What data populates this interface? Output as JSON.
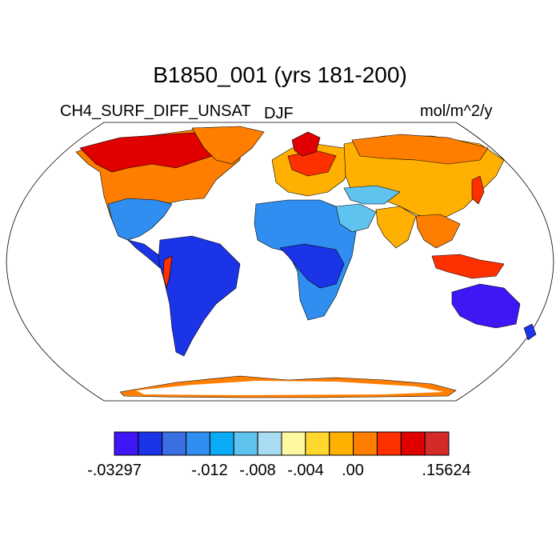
{
  "title": "B1850_001 (yrs 181-200)",
  "left_label": "CH4_SURF_DIFF_UNSAT",
  "center_label": "DJF",
  "right_label": "mol/m^2/y",
  "colorbar": {
    "colors": [
      "#3f16f5",
      "#1b34e8",
      "#3a6ee3",
      "#2f8eef",
      "#0aabf6",
      "#5fc3ef",
      "#a9dcf0",
      "#fff8a2",
      "#ffd72d",
      "#ffb000",
      "#ff7e00",
      "#ff3000",
      "#e00000",
      "#d42a2a"
    ],
    "tick_labels": [
      "-.03297",
      "-.012",
      "-.008",
      "-.004",
      ".00",
      ".15624"
    ]
  },
  "map_legend": {
    "projection": "Robinson",
    "regions": [
      {
        "name": "north-america",
        "color": "#ff7e00"
      },
      {
        "name": "south-america",
        "color": "#1b34e8"
      },
      {
        "name": "africa",
        "color": "#2f8eef"
      },
      {
        "name": "eurasia",
        "color": "#ffb000"
      },
      {
        "name": "australia",
        "color": "#3f16f5"
      },
      {
        "name": "antarctica",
        "color": "#ff7e00"
      }
    ]
  }
}
